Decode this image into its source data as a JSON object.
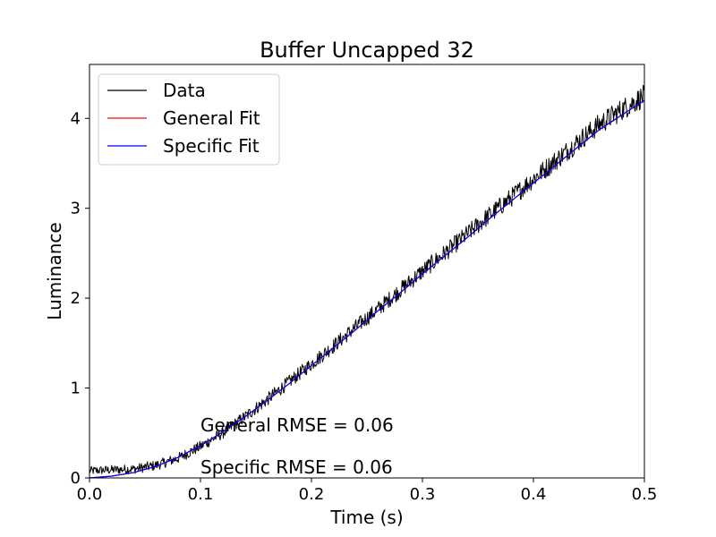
{
  "chart_data": {
    "type": "line",
    "title": "Buffer Uncapped 32",
    "xlabel": "Time (s)",
    "ylabel": "Luminance",
    "xlim": [
      0.0,
      0.5
    ],
    "ylim": [
      0.0,
      4.6
    ],
    "xticks": [
      "0.0",
      "0.1",
      "0.2",
      "0.3",
      "0.4",
      "0.5"
    ],
    "yticks": [
      "0",
      "1",
      "2",
      "3",
      "4"
    ],
    "grid": false,
    "legend_position": "top-left",
    "series": [
      {
        "name": "Data",
        "color": "#000000",
        "noisy": true,
        "x": [
          0.0,
          0.02,
          0.04,
          0.06,
          0.08,
          0.1,
          0.12,
          0.14,
          0.16,
          0.18,
          0.2,
          0.22,
          0.24,
          0.26,
          0.28,
          0.3,
          0.32,
          0.34,
          0.36,
          0.38,
          0.4,
          0.42,
          0.44,
          0.46,
          0.48,
          0.5
        ],
        "y": [
          0.08,
          0.09,
          0.1,
          0.14,
          0.22,
          0.35,
          0.5,
          0.68,
          0.87,
          1.07,
          1.27,
          1.47,
          1.68,
          1.88,
          2.09,
          2.3,
          2.5,
          2.71,
          2.92,
          3.12,
          3.33,
          3.53,
          3.74,
          3.94,
          4.1,
          4.25
        ]
      },
      {
        "name": "General Fit",
        "color": "#ff0000",
        "x": [
          0.0,
          0.02,
          0.04,
          0.06,
          0.08,
          0.1,
          0.12,
          0.14,
          0.16,
          0.18,
          0.2,
          0.22,
          0.24,
          0.26,
          0.28,
          0.3,
          0.32,
          0.34,
          0.36,
          0.38,
          0.4,
          0.42,
          0.44,
          0.46,
          0.48,
          0.5
        ],
        "y": [
          0.0,
          0.02,
          0.06,
          0.13,
          0.23,
          0.36,
          0.51,
          0.68,
          0.86,
          1.05,
          1.25,
          1.45,
          1.65,
          1.86,
          2.06,
          2.27,
          2.47,
          2.67,
          2.88,
          3.08,
          3.28,
          3.48,
          3.68,
          3.88,
          4.04,
          4.2
        ]
      },
      {
        "name": "Specific Fit",
        "color": "#0000ff",
        "x": [
          0.0,
          0.02,
          0.04,
          0.06,
          0.08,
          0.1,
          0.12,
          0.14,
          0.16,
          0.18,
          0.2,
          0.22,
          0.24,
          0.26,
          0.28,
          0.3,
          0.32,
          0.34,
          0.36,
          0.38,
          0.4,
          0.42,
          0.44,
          0.46,
          0.48,
          0.5
        ],
        "y": [
          0.0,
          0.02,
          0.06,
          0.13,
          0.23,
          0.36,
          0.51,
          0.68,
          0.86,
          1.05,
          1.25,
          1.45,
          1.65,
          1.86,
          2.06,
          2.27,
          2.47,
          2.67,
          2.88,
          3.08,
          3.28,
          3.48,
          3.68,
          3.88,
          4.04,
          4.2
        ]
      }
    ],
    "annotations": [
      {
        "text": "General RMSE = 0.06",
        "x": 0.1,
        "y": 0.47
      },
      {
        "text": "Specific RMSE = 0.06",
        "x": 0.1,
        "y": 0.0
      }
    ]
  }
}
